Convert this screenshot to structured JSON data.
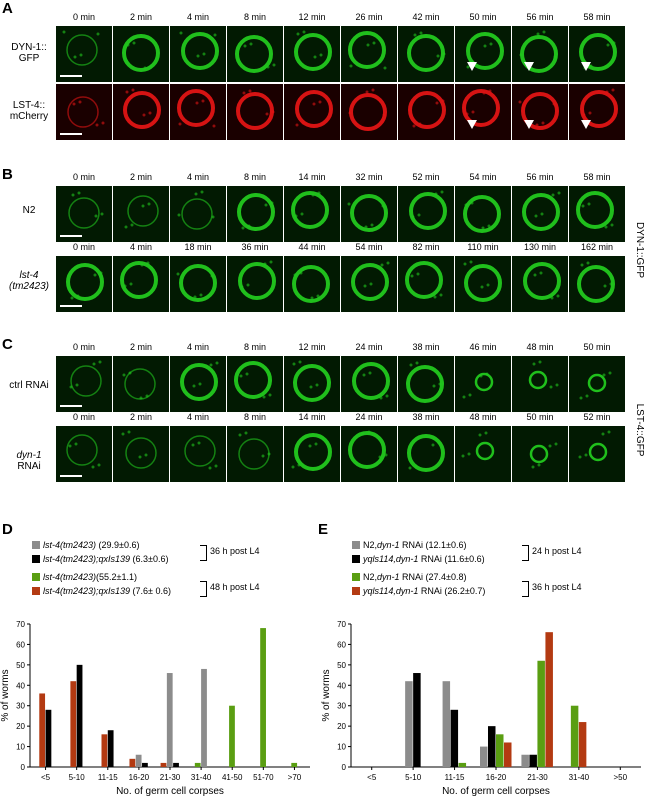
{
  "panels": {
    "A": {
      "letter": "A",
      "times": [
        "0 min",
        "2 min",
        "4 min",
        "8 min",
        "12 min",
        "26 min",
        "42 min",
        "50 min",
        "56 min",
        "58 min"
      ],
      "rows": [
        {
          "label_lines": [
            "DYN-1::",
            "GFP"
          ],
          "color": "#22c81e",
          "arrows": [
            false,
            false,
            false,
            false,
            false,
            false,
            false,
            true,
            true,
            true
          ]
        },
        {
          "label_lines": [
            "LST-4::",
            "mCherry"
          ],
          "color": "#e01414",
          "arrows": [
            false,
            false,
            false,
            false,
            false,
            false,
            false,
            true,
            true,
            true
          ]
        }
      ]
    },
    "B": {
      "letter": "B",
      "side_label": "DYN-1::GFP",
      "rows": [
        {
          "label_lines": [
            "N2"
          ],
          "italic": false,
          "color": "#22c81e",
          "times": [
            "0 min",
            "2 min",
            "4 min",
            "8 min",
            "14 min",
            "32 min",
            "52 min",
            "54 min",
            "56 min",
            "58 min"
          ]
        },
        {
          "label_lines": [
            "lst-4",
            "(tm2423)"
          ],
          "italic": true,
          "color": "#22c81e",
          "times": [
            "0 min",
            "4 min",
            "18 min",
            "36 min",
            "44 min",
            "54 min",
            "82 min",
            "110 min",
            "130 min",
            "162 min"
          ]
        }
      ]
    },
    "C": {
      "letter": "C",
      "side_label": "LST-4::GFP",
      "rows": [
        {
          "label_prefix": "ctrl",
          "label_italic": "",
          "label_suffix": " RNAi",
          "color": "#22c81e",
          "times": [
            "0 min",
            "2 min",
            "4 min",
            "8 min",
            "12 min",
            "24 min",
            "38 min",
            "46 min",
            "48 min",
            "50 min"
          ]
        },
        {
          "label_prefix": "",
          "label_italic": "dyn-1",
          "label_suffix": " RNAi",
          "color": "#22c81e",
          "times": [
            "0 min",
            "2 min",
            "4 min",
            "8 min",
            "14 min",
            "24 min",
            "38 min",
            "48 min",
            "50 min",
            "52 min"
          ]
        }
      ]
    }
  },
  "chart_data": [
    {
      "panel": "D",
      "type": "bar",
      "xlabel": "No. of germ cell corpses",
      "ylabel": "% of worms",
      "ylim": [
        0,
        70
      ],
      "yticks": [
        0,
        10,
        20,
        30,
        40,
        50,
        60,
        70
      ],
      "categories": [
        "<5",
        "5-10",
        "11-15",
        "16-20",
        "21-30",
        "31-40",
        "41-50",
        "51-70",
        ">70"
      ],
      "series": [
        {
          "name": "lst-4(tm2423)",
          "stat": " (29.9±0.6)",
          "color": "#8c8c8c",
          "values": [
            0,
            0,
            0,
            6,
            46,
            48,
            0,
            0,
            0
          ]
        },
        {
          "name": "lst-4(tm2423);qxIs139",
          "stat": " (6.3±0.6)",
          "color": "#000000",
          "values": [
            28,
            50,
            18,
            2,
            2,
            0,
            0,
            0,
            0
          ]
        },
        {
          "name": "lst-4(tm2423)",
          "stat": "(55.2±1.1)",
          "color": "#5a9e12",
          "values": [
            0,
            0,
            0,
            0,
            0,
            2,
            30,
            68,
            2
          ]
        },
        {
          "name": "lst-4(tm2423);qxIs139",
          "stat": " (7.6± 0.6)",
          "color": "#b33a12",
          "values": [
            36,
            42,
            16,
            4,
            2,
            0,
            0,
            0,
            0
          ]
        }
      ],
      "brackets": [
        {
          "label": "36 h post L4",
          "series": [
            0,
            1
          ]
        },
        {
          "label": "48 h post L4",
          "series": [
            2,
            3
          ]
        }
      ],
      "bar_order": [
        3,
        2,
        0,
        1
      ]
    },
    {
      "panel": "E",
      "type": "bar",
      "xlabel": "No. of germ cell corpses",
      "ylabel": "% of worms",
      "ylim": [
        0,
        70
      ],
      "yticks": [
        0,
        10,
        20,
        30,
        40,
        50,
        60,
        70
      ],
      "categories": [
        "<5",
        "5-10",
        "11-15",
        "16-20",
        "21-30",
        "31-40",
        ">50"
      ],
      "series": [
        {
          "name_plain": "N2,",
          "name_italic": "dyn-1",
          "name_tail": " RNAi (12.1±0.6)",
          "color": "#8c8c8c",
          "values": [
            0,
            42,
            42,
            10,
            6,
            0,
            0
          ]
        },
        {
          "name_plain": "",
          "name_italic": "yqls114,dyn-1",
          "name_tail": " RNAi (11.6±0.6)",
          "color": "#000000",
          "values": [
            0,
            46,
            28,
            20,
            6,
            0,
            0
          ]
        },
        {
          "name_plain": "N2,",
          "name_italic": "dyn-1",
          "name_tail": " RNAi (27.4±0.8)",
          "color": "#5a9e12",
          "values": [
            0,
            0,
            2,
            16,
            52,
            30,
            0
          ]
        },
        {
          "name_plain": "",
          "name_italic": "yqls114,dyn-1",
          "name_tail": " RNAi (26.2±0.7)",
          "color": "#b33a12",
          "values": [
            0,
            0,
            0,
            12,
            66,
            22,
            0
          ]
        }
      ],
      "brackets": [
        {
          "label": "24 h post L4",
          "series": [
            0,
            1
          ]
        },
        {
          "label": "36 h post L4",
          "series": [
            2,
            3
          ]
        }
      ],
      "bar_order": [
        0,
        1,
        2,
        3
      ]
    }
  ]
}
